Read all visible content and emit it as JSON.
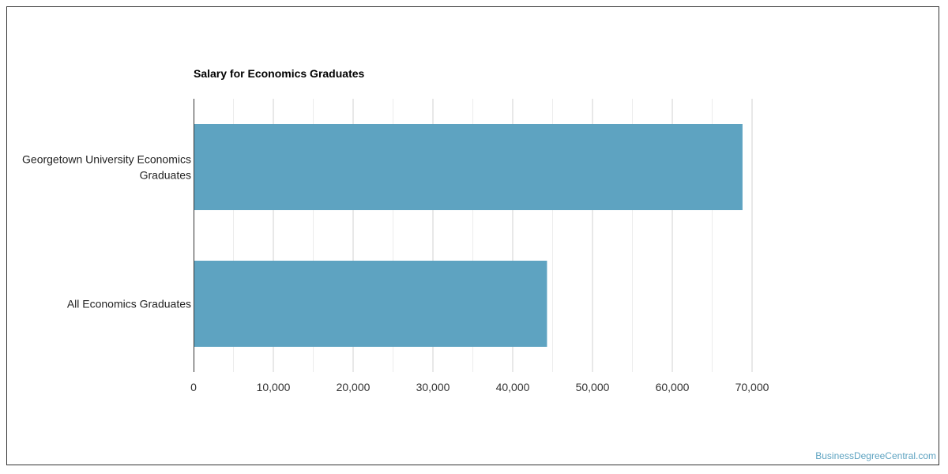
{
  "chart_data": {
    "type": "bar",
    "orientation": "horizontal",
    "title": "Salary for Economics Graduates",
    "categories": [
      "Georgetown University Economics Graduates",
      "All Economics Graduates"
    ],
    "category_lines": [
      [
        "Georgetown University Economics",
        "Graduates"
      ],
      [
        "All Economics Graduates"
      ]
    ],
    "values": [
      68800,
      44300
    ],
    "xlim": [
      0,
      70000
    ],
    "ticks": [
      0,
      10000,
      20000,
      30000,
      40000,
      50000,
      60000,
      70000
    ],
    "tick_labels": [
      "0",
      "10,000",
      "20,000",
      "30,000",
      "40,000",
      "50,000",
      "60,000",
      "70,000"
    ],
    "bar_color": "#5ea3c1",
    "grid": true
  },
  "watermark": "BusinessDegreeCentral.com"
}
